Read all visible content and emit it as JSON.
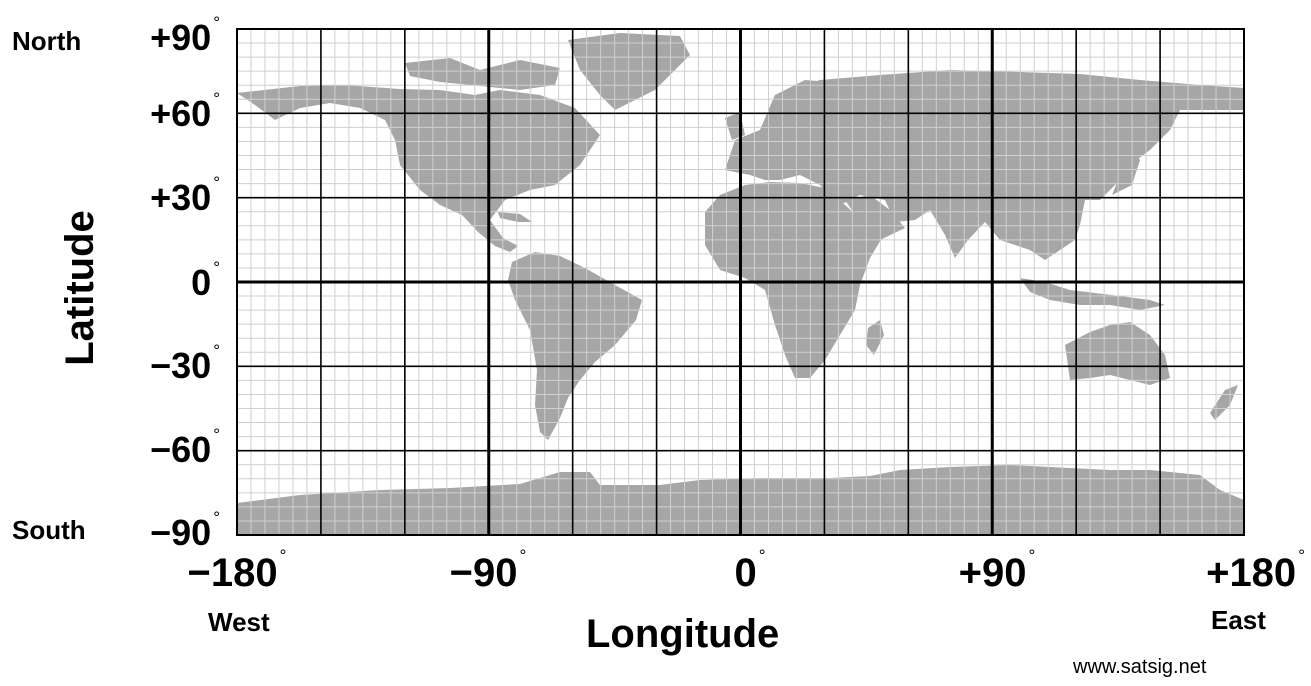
{
  "map": {
    "degree_symbol": "°",
    "latitude_labels": [
      "+90",
      "+60",
      "+30",
      "0",
      "−30",
      "−60",
      "−90"
    ],
    "longitude_labels": [
      "−180",
      "−90",
      "0",
      "+90",
      "+180"
    ],
    "north_label": "North",
    "south_label": "South",
    "west_label": "West",
    "east_label": "East",
    "latitude_title": "Latitude",
    "longitude_title": "Longitude",
    "credit": "www.satsig.net",
    "colors": {
      "land": "#a6a6a6",
      "ocean": "#ffffff",
      "minor_grid": "#cfcfcf",
      "major_grid": "#000000"
    },
    "grid": {
      "major_step_deg": 30,
      "minor_step_deg": 5
    }
  }
}
